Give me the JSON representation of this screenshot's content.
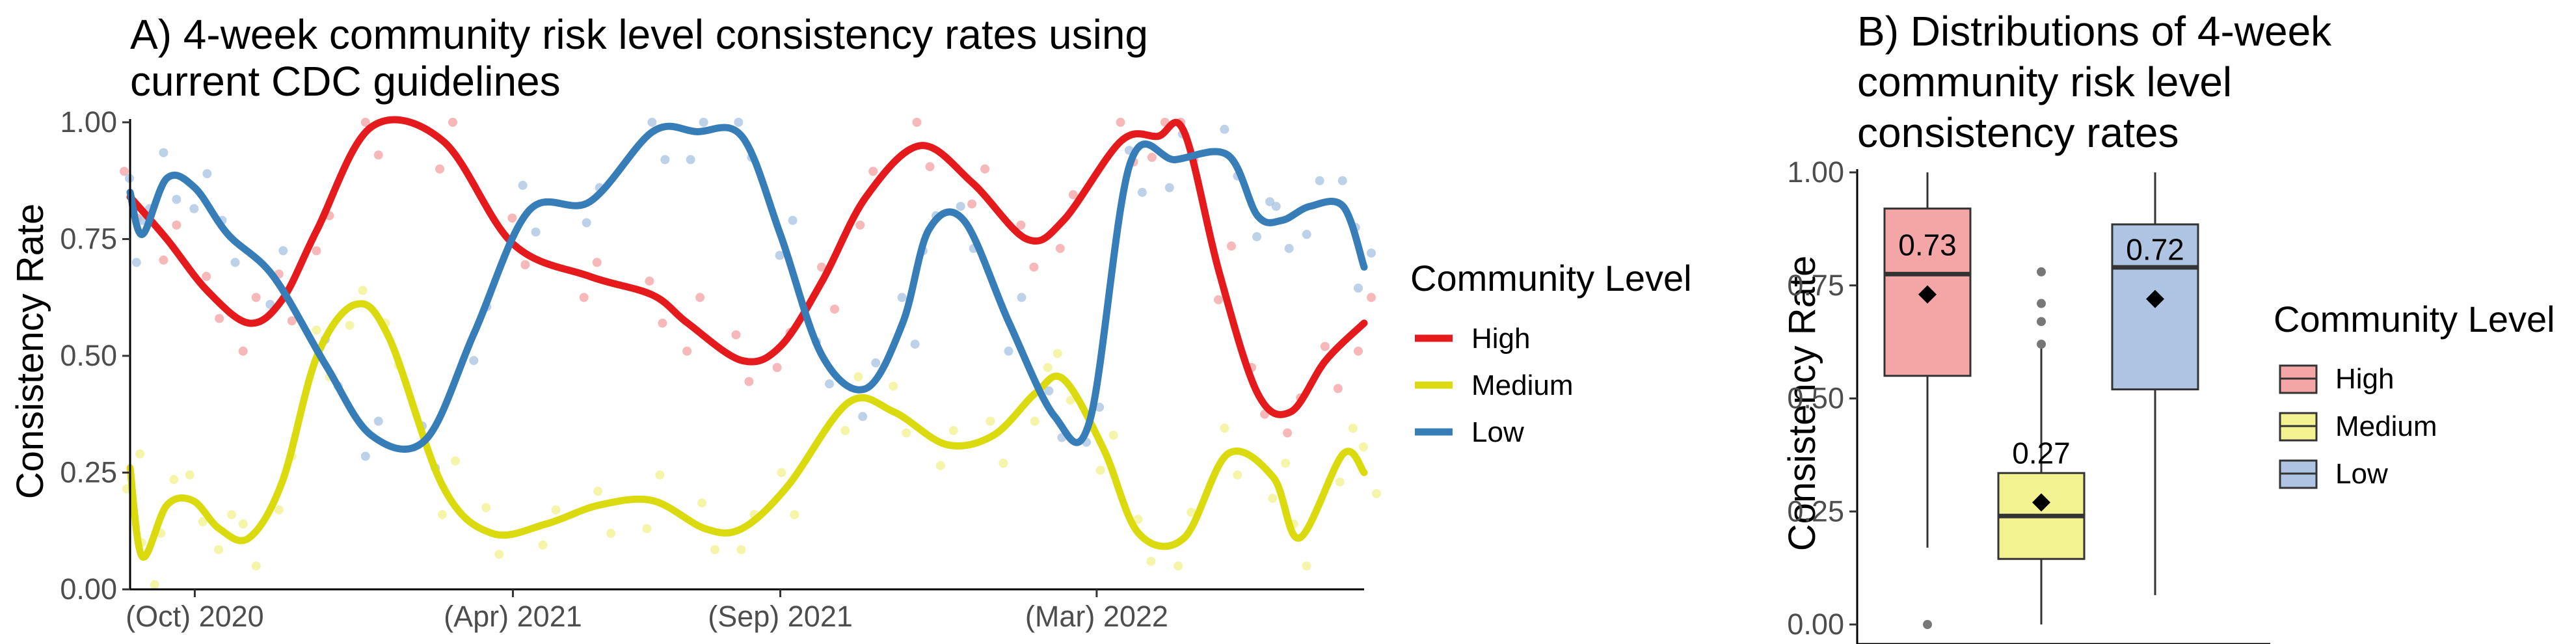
{
  "chart_data": [
    {
      "type": "line",
      "title_lines": [
        "A) 4-week community risk level consistency rates using",
        "current CDC guidelines"
      ],
      "xlabel": "",
      "ylabel": "Consistency Rate",
      "ylim": [
        0,
        1
      ],
      "y_ticks": [
        "0.00",
        "0.25",
        "0.50",
        "0.75",
        "1.00"
      ],
      "x_range": [
        "2020-08-25",
        "2022-08-01"
      ],
      "x_ticks": [
        {
          "date": "2020-10-01",
          "label": "(Oct) 2020"
        },
        {
          "date": "2021-04-01",
          "label": "(Apr) 2021"
        },
        {
          "date": "2021-09-01",
          "label": "(Sep) 2021"
        },
        {
          "date": "2022-03-01",
          "label": "(Mar) 2022"
        }
      ],
      "grid": false,
      "legend": {
        "title": "Community Level",
        "position": "right"
      },
      "series": [
        {
          "name": "High",
          "color": "#e41a1c",
          "point_color": "#f4a0a1",
          "x": [
            "2020-08-25",
            "2020-09-15",
            "2020-10-08",
            "2020-11-01",
            "2020-11-20",
            "2020-12-10",
            "2021-01-10",
            "2021-02-20",
            "2021-04-01",
            "2021-05-15",
            "2021-06-20",
            "2021-07-10",
            "2021-08-10",
            "2021-09-01",
            "2021-09-25",
            "2021-10-20",
            "2021-11-20",
            "2021-12-20",
            "2022-01-20",
            "2022-02-10",
            "2022-03-15",
            "2022-04-05",
            "2022-04-20",
            "2022-05-10",
            "2022-06-01",
            "2022-06-20",
            "2022-07-10",
            "2022-08-01"
          ],
          "y": [
            0.84,
            0.75,
            0.64,
            0.57,
            0.62,
            0.77,
            0.99,
            0.96,
            0.74,
            0.67,
            0.63,
            0.57,
            0.49,
            0.52,
            0.66,
            0.84,
            0.95,
            0.87,
            0.75,
            0.79,
            0.96,
            0.97,
            0.98,
            0.68,
            0.42,
            0.38,
            0.49,
            0.57
          ]
        },
        {
          "name": "Medium",
          "color": "#dada0e",
          "point_color": "#f2f28c",
          "x": [
            "2020-08-25",
            "2020-09-01",
            "2020-09-15",
            "2020-09-30",
            "2020-10-15",
            "2020-11-01",
            "2020-11-20",
            "2020-12-10",
            "2021-01-01",
            "2021-01-20",
            "2021-02-20",
            "2021-03-20",
            "2021-04-20",
            "2021-05-20",
            "2021-06-20",
            "2021-07-20",
            "2021-08-10",
            "2021-09-05",
            "2021-10-10",
            "2021-11-05",
            "2021-12-05",
            "2022-01-01",
            "2022-01-25",
            "2022-02-10",
            "2022-03-05",
            "2022-03-25",
            "2022-04-20",
            "2022-05-15",
            "2022-06-10",
            "2022-06-25",
            "2022-07-20",
            "2022-08-01"
          ],
          "y": [
            0.26,
            0.07,
            0.18,
            0.19,
            0.13,
            0.11,
            0.23,
            0.5,
            0.61,
            0.54,
            0.22,
            0.12,
            0.14,
            0.18,
            0.19,
            0.13,
            0.13,
            0.22,
            0.4,
            0.38,
            0.31,
            0.33,
            0.42,
            0.45,
            0.3,
            0.12,
            0.11,
            0.29,
            0.24,
            0.11,
            0.29,
            0.25
          ]
        },
        {
          "name": "Low",
          "color": "#377eb8",
          "point_color": "#a7c2e2",
          "x": [
            "2020-08-25",
            "2020-09-01",
            "2020-09-15",
            "2020-10-01",
            "2020-10-20",
            "2020-11-15",
            "2020-12-15",
            "2021-01-10",
            "2021-02-10",
            "2021-03-10",
            "2021-04-10",
            "2021-05-15",
            "2021-06-20",
            "2021-07-15",
            "2021-08-10",
            "2021-09-01",
            "2021-09-25",
            "2021-10-20",
            "2021-11-10",
            "2021-11-25",
            "2021-12-15",
            "2022-01-10",
            "2022-02-05",
            "2022-02-25",
            "2022-03-20",
            "2022-04-15",
            "2022-05-15",
            "2022-06-01",
            "2022-06-15",
            "2022-07-01",
            "2022-07-20",
            "2022-08-01"
          ],
          "y": [
            0.85,
            0.76,
            0.88,
            0.86,
            0.76,
            0.67,
            0.48,
            0.33,
            0.32,
            0.55,
            0.81,
            0.83,
            0.98,
            0.98,
            0.97,
            0.76,
            0.5,
            0.43,
            0.57,
            0.77,
            0.79,
            0.57,
            0.37,
            0.36,
            0.91,
            0.92,
            0.93,
            0.8,
            0.79,
            0.82,
            0.82,
            0.69
          ]
        }
      ]
    },
    {
      "type": "box",
      "title_lines": [
        "B) Distributions of 4-week",
        "community risk level",
        "consistency rates"
      ],
      "xlabel": "",
      "ylabel": "Consistency Rate",
      "ylim": [
        0,
        1
      ],
      "y_ticks": [
        "0.00",
        "0.25",
        "0.50",
        "0.75",
        "1.00"
      ],
      "grid": false,
      "legend": {
        "title": "Community Level",
        "position": "right"
      },
      "boxes": [
        {
          "name": "High",
          "fill": "#f4a5a5",
          "min": 0.17,
          "q1": 0.55,
          "median": 0.775,
          "q3": 0.92,
          "max": 1.0,
          "mean": 0.73,
          "mean_label": "0.73",
          "outliers": [
            0.0
          ]
        },
        {
          "name": "Medium",
          "fill": "#f2f291",
          "min": 0.0,
          "q1": 0.145,
          "median": 0.24,
          "q3": 0.335,
          "max": 0.61,
          "mean": 0.27,
          "mean_label": "0.27",
          "outliers": [
            0.62,
            0.67,
            0.71,
            0.78
          ]
        },
        {
          "name": "Low",
          "fill": "#aec4e2",
          "min": 0.065,
          "q1": 0.52,
          "median": 0.79,
          "q3": 0.885,
          "max": 1.0,
          "mean": 0.72,
          "mean_label": "0.72",
          "outliers": []
        }
      ]
    }
  ]
}
